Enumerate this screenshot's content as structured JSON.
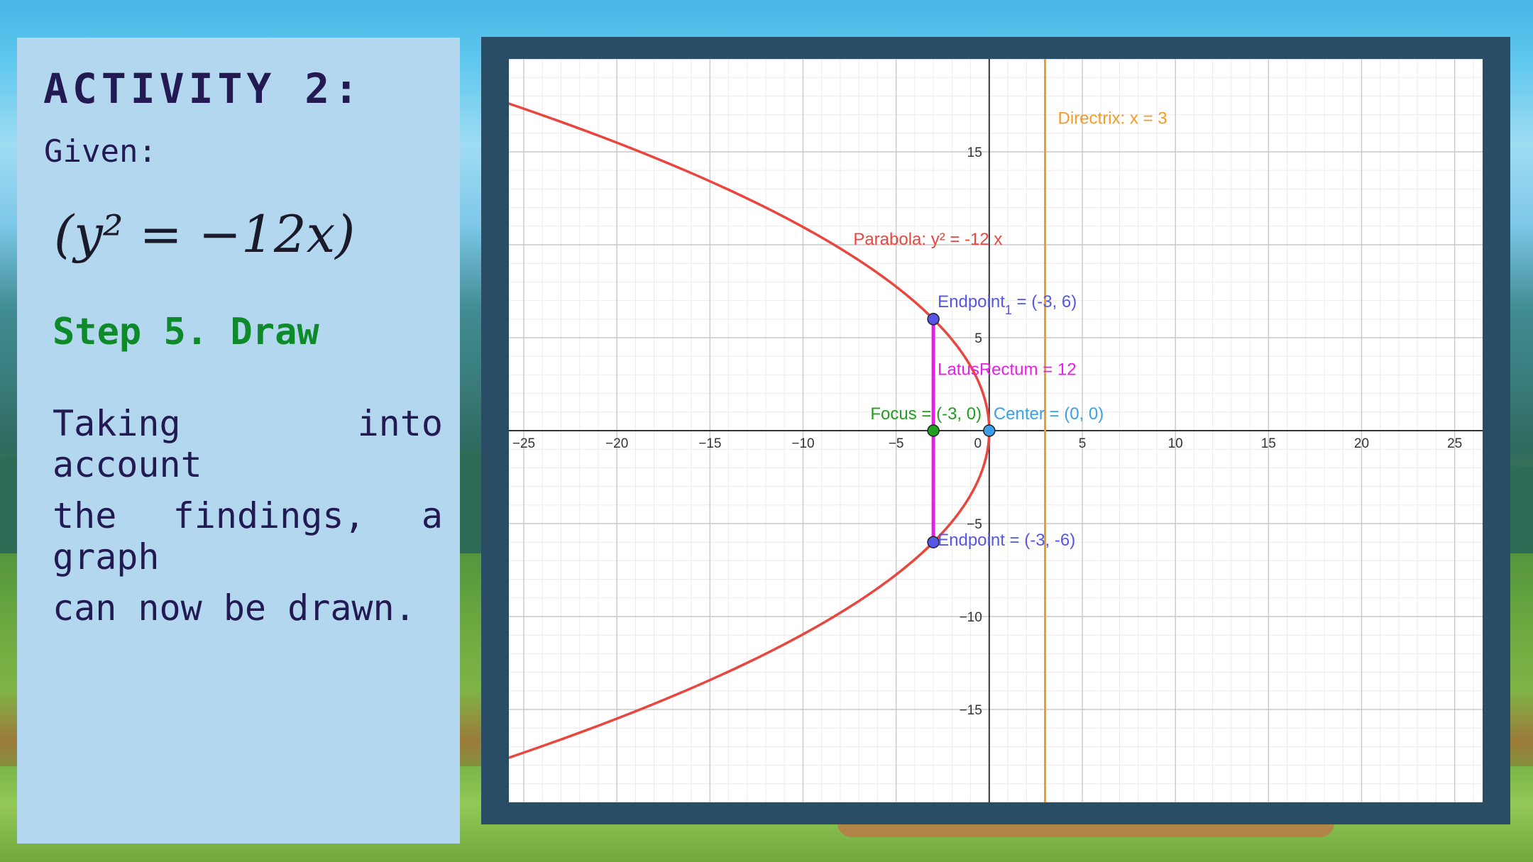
{
  "slide": {
    "title": "ACTIVITY 2:",
    "given_label": "Given:",
    "equation": "(y² = −12x)",
    "step_label": "Step 5. Draw",
    "description_lines": [
      "Taking into account",
      "the findings, a graph",
      "can now be drawn."
    ]
  },
  "colors": {
    "panel_bg": "#b3d7ef",
    "frame": "#2a4d66",
    "title_text": "#231a54",
    "step_text": "#0e8a2a",
    "parabola": "#e8463f",
    "directrix": "#f39a2b",
    "latus_rectum": "#e81ee8",
    "endpoint": "#5656e6",
    "focus": "#1f9e1f",
    "center": "#3aa0ea"
  },
  "chart_data": {
    "type": "scatter",
    "xlim": [
      -25.8,
      26.5
    ],
    "ylim": [
      -20,
      20
    ],
    "grid": true,
    "x_ticks": [
      -25,
      -20,
      -15,
      -10,
      -5,
      0,
      5,
      10,
      15,
      20,
      25
    ],
    "y_ticks": [
      -15,
      -10,
      -5,
      5,
      15
    ],
    "series": [
      {
        "name": "Parabola: y² = -12 x",
        "kind": "curve",
        "equation": "y^2 = -12x",
        "color": "#e8463f"
      },
      {
        "name": "Directrix: x = 3",
        "kind": "vline",
        "x": 3,
        "color": "#f39a2b"
      },
      {
        "name": "LatusRectum = 12",
        "kind": "segment",
        "x": [
          -3,
          -3
        ],
        "y": [
          6,
          -6
        ],
        "color": "#e81ee8"
      }
    ],
    "points": [
      {
        "name": "Endpoint1",
        "label": "Endpoint",
        "subscript": "1",
        "value_text": " = (-3, 6)",
        "x": -3,
        "y": 6,
        "color": "#5656e6"
      },
      {
        "name": "Endpoint",
        "label": "Endpoint = (-3, -6)",
        "x": -3,
        "y": -6,
        "color": "#5656e6"
      },
      {
        "name": "Focus",
        "label": "Focus = (-3, 0)",
        "x": -3,
        "y": 0,
        "color": "#1f9e1f"
      },
      {
        "name": "Center",
        "label": "Center = (0, 0)",
        "x": 0,
        "y": 0,
        "color": "#3aa0ea"
      }
    ],
    "labels": {
      "parabola": "Parabola: y² = -12 x",
      "directrix": "Directrix: x = 3",
      "latus_rectum": "LatusRectum = 12"
    }
  }
}
